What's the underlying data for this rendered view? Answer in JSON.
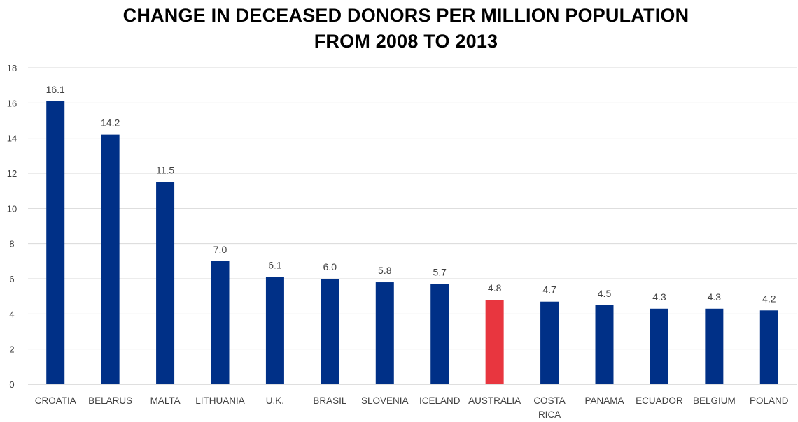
{
  "chart_data": {
    "type": "bar",
    "title_lines": [
      "CHANGE IN DECEASED DONORS PER MILLION POPULATION",
      "FROM 2008 TO 2013"
    ],
    "categories": [
      [
        "CROATIA"
      ],
      [
        "BELARUS"
      ],
      [
        "MALTA"
      ],
      [
        "LITHUANIA"
      ],
      [
        "U.K."
      ],
      [
        "BRASIL"
      ],
      [
        "SLOVENIA"
      ],
      [
        "ICELAND"
      ],
      [
        "AUSTRALIA"
      ],
      [
        "COSTA",
        "RICA"
      ],
      [
        "PANAMA"
      ],
      [
        "ECUADOR"
      ],
      [
        "BELGIUM"
      ],
      [
        "POLAND"
      ]
    ],
    "values": [
      16.1,
      14.2,
      11.5,
      7.0,
      6.1,
      6.0,
      5.8,
      5.7,
      4.8,
      4.7,
      4.5,
      4.3,
      4.3,
      4.2
    ],
    "data_labels": [
      "16.1",
      "14.2",
      "11.5",
      "7.0",
      "6.1",
      "6.0",
      "5.8",
      "5.7",
      "4.8",
      "4.7",
      "4.5",
      "4.3",
      "4.3",
      "4.2"
    ],
    "highlight_category": "AUSTRALIA",
    "ylim": [
      0,
      18
    ],
    "yticks": [
      0,
      2,
      4,
      6,
      8,
      10,
      12,
      14,
      16,
      18
    ],
    "grid": true,
    "legend": "none",
    "colors": {
      "bar": "#003087",
      "highlight": "#e8363f",
      "grid": "#d9d9d9",
      "axis": "#bfbfbf"
    }
  }
}
